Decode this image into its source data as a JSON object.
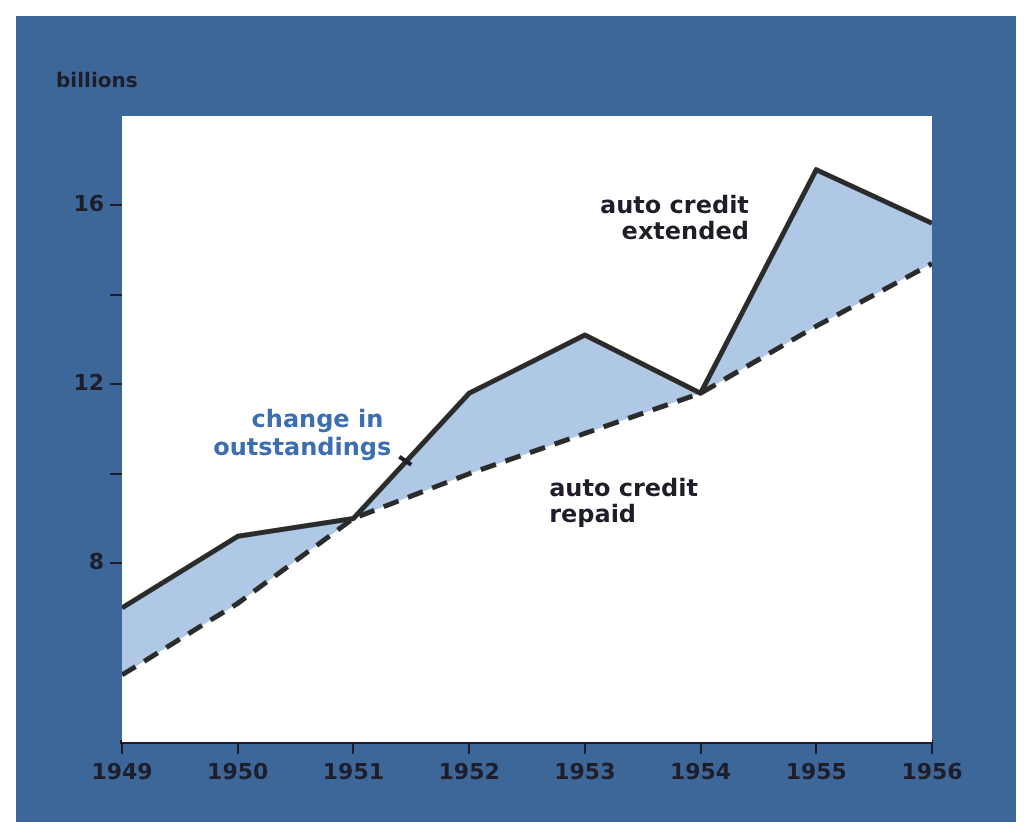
{
  "chart_data": {
    "type": "line",
    "ylabel": "billions",
    "x": [
      1949,
      1950,
      1951,
      1952,
      1953,
      1954,
      1955,
      1956
    ],
    "xlim": [
      1949,
      1956
    ],
    "xticks": [
      1949,
      1950,
      1951,
      1952,
      1953,
      1954,
      1955,
      1956
    ],
    "ylim": [
      4,
      18
    ],
    "yticks": [
      {
        "value": 8,
        "label": "8"
      },
      {
        "value": 10,
        "label": null
      },
      {
        "value": 12,
        "label": "12"
      },
      {
        "value": 14,
        "label": null
      },
      {
        "value": 16,
        "label": "16"
      }
    ],
    "series": [
      {
        "name": "auto credit extended",
        "type": "area",
        "color": "#2b2b2b",
        "line_style": "solid",
        "values": [
          7.0,
          8.6,
          9.0,
          11.8,
          13.1,
          11.8,
          16.8,
          15.6
        ]
      },
      {
        "name": "auto credit repaid",
        "color": "#2b2b2b",
        "line_style": "dashed",
        "values": [
          5.5,
          7.1,
          9.0,
          10.0,
          10.9,
          11.8,
          13.3,
          14.7
        ]
      }
    ],
    "annotations": [
      {
        "text": "change in outstandings",
        "x": 1951.5,
        "y": 10.2
      }
    ],
    "grid": false,
    "legend": false,
    "marker": "none"
  }
}
